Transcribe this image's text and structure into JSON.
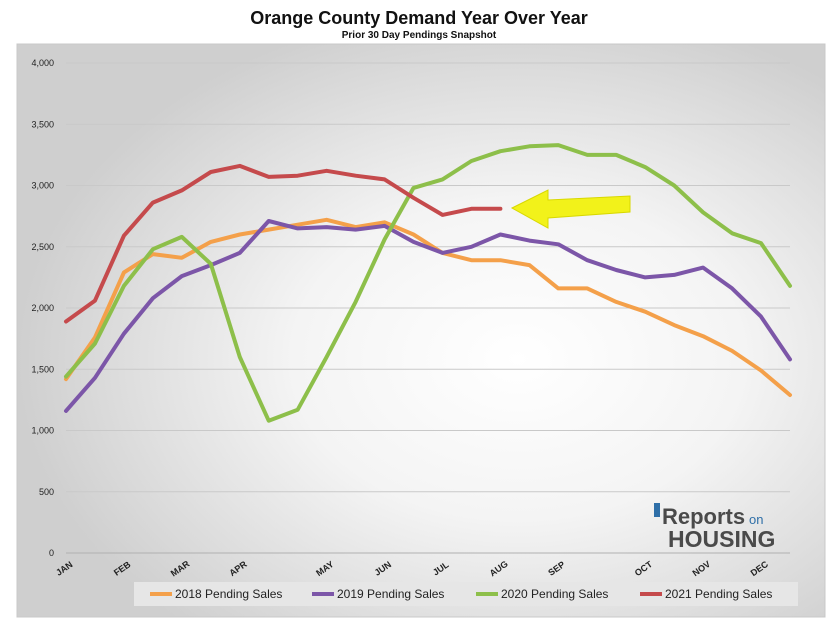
{
  "chart_data": {
    "type": "line",
    "title": "Orange County Demand Year Over Year",
    "subtitle": "Prior 30 Day Pendings Snapshot",
    "ylim": [
      0,
      4000
    ],
    "yticks": [
      "0",
      "500",
      "1,000",
      "1,500",
      "2,000",
      "2,500",
      "3,000",
      "3,500",
      "4,000"
    ],
    "ytick_values": [
      0,
      500,
      1000,
      1500,
      2000,
      2500,
      3000,
      3500,
      4000
    ],
    "x_labels": [
      "JAN",
      "FEB",
      "MAR",
      "APR",
      "MAY",
      "JUN",
      "JUL",
      "AUG",
      "SEP",
      "OCT",
      "NOV",
      "DEC"
    ],
    "x_label_positions": [
      0,
      2,
      4,
      6,
      9,
      11,
      13,
      15,
      17,
      20,
      22,
      24
    ],
    "points_count": 26,
    "grid": true,
    "legend_position": "bottom",
    "series": [
      {
        "name": "2018 Pending Sales",
        "color": "#f4a04a",
        "values": [
          1420,
          1760,
          2290,
          2440,
          2410,
          2540,
          2600,
          2640,
          2680,
          2720,
          2660,
          2700,
          2600,
          2450,
          2390,
          2390,
          2350,
          2160,
          2160,
          2050,
          1970,
          1860,
          1770,
          1650,
          1490,
          1290
        ]
      },
      {
        "name": "2019 Pending Sales",
        "color": "#7c56a8",
        "values": [
          1160,
          1430,
          1790,
          2080,
          2260,
          2350,
          2450,
          2710,
          2650,
          2660,
          2640,
          2670,
          2540,
          2450,
          2500,
          2600,
          2550,
          2520,
          2390,
          2310,
          2250,
          2270,
          2330,
          2160,
          1930,
          1580
        ]
      },
      {
        "name": "2020 Pending Sales",
        "color": "#8dbf4a",
        "values": [
          1440,
          1710,
          2180,
          2480,
          2580,
          2360,
          1600,
          1080,
          1170,
          1600,
          2050,
          2560,
          2980,
          3050,
          3200,
          3280,
          3320,
          3330,
          3250,
          3250,
          3150,
          3000,
          2780,
          2610,
          2530,
          2180
        ]
      },
      {
        "name": "2021 Pending Sales",
        "color": "#c54a4c",
        "values": [
          1890,
          2060,
          2590,
          2860,
          2960,
          3110,
          3160,
          3070,
          3080,
          3120,
          3080,
          3050,
          2900,
          2760,
          2810,
          2810
        ]
      }
    ]
  },
  "logo": {
    "line1": "Reports",
    "line1_suffix": "on",
    "line2": "HOUSING"
  }
}
